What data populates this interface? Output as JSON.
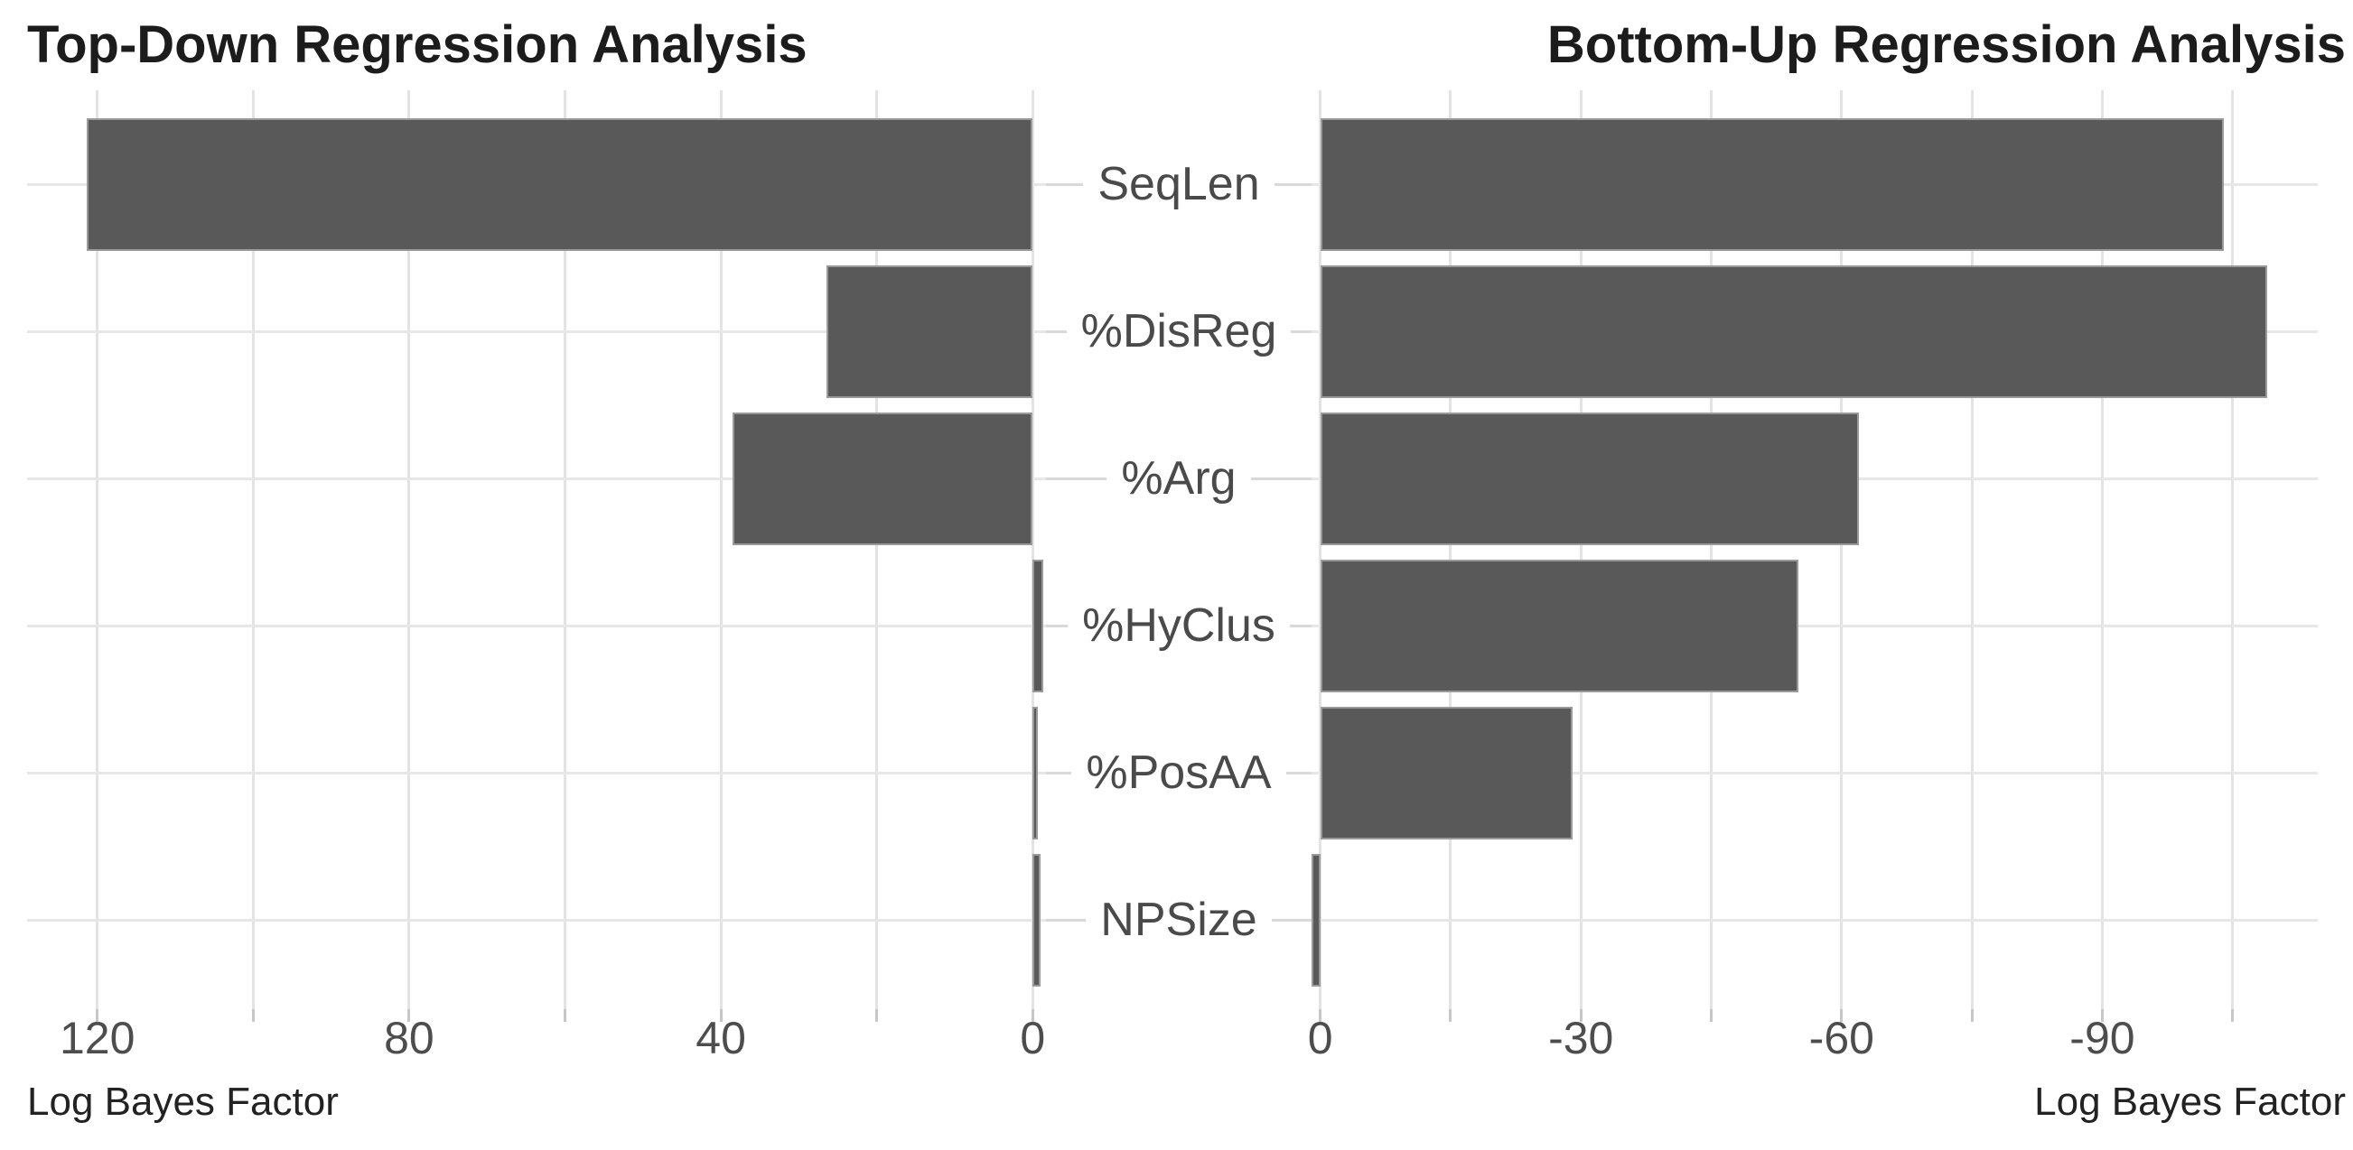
{
  "titles": {
    "left": "Top-Down Regression Analysis",
    "right": "Bottom-Up Regression Analysis"
  },
  "captions": {
    "left": "Log Bayes Factor",
    "right": "Log Bayes Factor"
  },
  "categories": [
    "SeqLen",
    "%DisReg",
    "%Arg",
    "%HyClus",
    "%PosAA",
    "NPSize"
  ],
  "chart_data": [
    {
      "type": "bar",
      "orientation": "horizontal",
      "title": "Top-Down Regression Analysis",
      "xlabel": "Log Bayes Factor",
      "categories": [
        "SeqLen",
        "%DisReg",
        "%Arg",
        "%HyClus",
        "%PosAA",
        "NPSize"
      ],
      "values": [
        121.3,
        26.5,
        38.5,
        -1.3,
        -0.6,
        -1.0
      ],
      "xlim": [
        129,
        -1.7
      ],
      "axis_reversed": true,
      "grid": true,
      "gridline_values": [
        120,
        100,
        80,
        60,
        40,
        20,
        0
      ],
      "tick_label_values": [
        120,
        80,
        40,
        0
      ],
      "tick_labels": [
        "120",
        "80",
        "40",
        "0"
      ]
    },
    {
      "type": "bar",
      "orientation": "horizontal",
      "title": "Bottom-Up Regression Analysis",
      "xlabel": "Log Bayes Factor",
      "categories": [
        "SeqLen",
        "%DisReg",
        "%Arg",
        "%HyClus",
        "%PosAA",
        "NPSize"
      ],
      "values": [
        -104,
        -109,
        -62,
        -55,
        -29,
        1
      ],
      "xlim": [
        1,
        -114.8
      ],
      "axis_reversed": false,
      "grid": true,
      "gridline_values": [
        0,
        -15,
        -30,
        -45,
        -60,
        -75,
        -90,
        -105
      ],
      "tick_label_values": [
        0,
        -30,
        -60,
        -90
      ],
      "tick_labels": [
        "0",
        "-30",
        "-60",
        "-90"
      ]
    }
  ],
  "colors": {
    "background": "#ffffff",
    "bar_fill": "#595959",
    "bar_stroke": "#9a9a9a",
    "gridline_vertical": "#e3e3e3",
    "gridline_horizontal": "#e7e7e7",
    "leader_line": "#d9d9d9",
    "axis_tick": "#c7c7c7",
    "tick_label_text": "#4d4d4d",
    "category_label_text": "#4a4a4a",
    "title_text": "#1c1c1c",
    "caption_text": "#222222"
  }
}
